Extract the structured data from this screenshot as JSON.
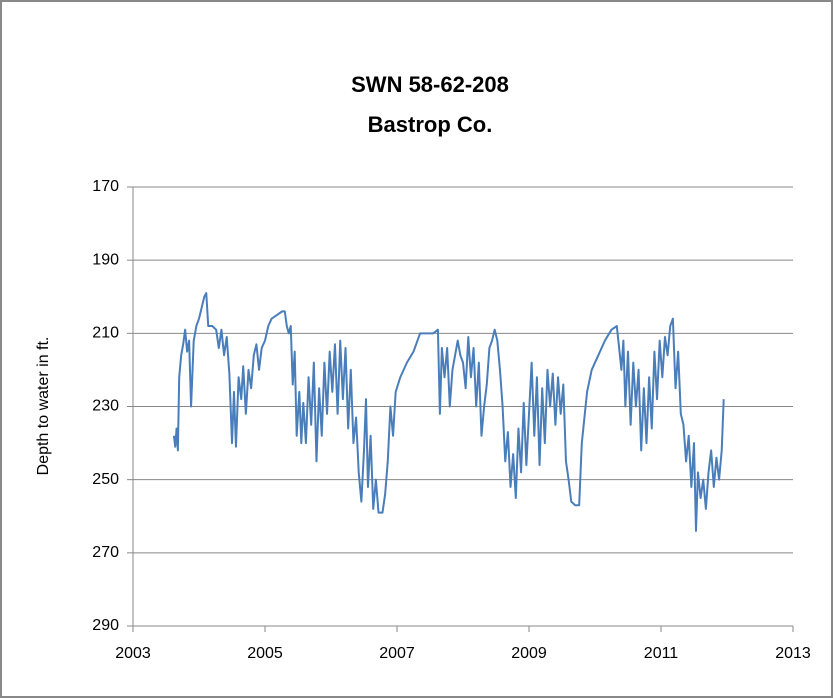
{
  "chart_data": {
    "type": "line",
    "title": "SWN 58-62-208",
    "subtitle": "Bastrop Co.",
    "y_label": "Depth to water in ft.",
    "ylim": [
      170,
      290
    ],
    "y_inverted": true,
    "yticks": [
      170,
      190,
      210,
      230,
      250,
      270,
      290
    ],
    "xlim": [
      2003,
      2013
    ],
    "xticks": [
      2003,
      2005,
      2007,
      2009,
      2011,
      2013
    ],
    "grid": true,
    "x": [
      2003.62,
      2003.64,
      2003.66,
      2003.68,
      2003.7,
      2003.73,
      2003.76,
      2003.79,
      2003.82,
      2003.85,
      2003.88,
      2003.92,
      2003.96,
      2004.0,
      2004.04,
      2004.08,
      2004.11,
      2004.14,
      2004.2,
      2004.26,
      2004.3,
      2004.34,
      2004.38,
      2004.42,
      2004.46,
      2004.5,
      2004.53,
      2004.56,
      2004.6,
      2004.64,
      2004.67,
      2004.71,
      2004.75,
      2004.79,
      2004.83,
      2004.87,
      2004.91,
      2004.95,
      2005.0,
      2005.05,
      2005.1,
      2005.18,
      2005.26,
      2005.3,
      2005.33,
      2005.36,
      2005.39,
      2005.42,
      2005.45,
      2005.48,
      2005.52,
      2005.55,
      2005.58,
      2005.62,
      2005.66,
      2005.7,
      2005.74,
      2005.78,
      2005.82,
      2005.86,
      2005.9,
      2005.94,
      2005.98,
      2006.02,
      2006.06,
      2006.1,
      2006.14,
      2006.18,
      2006.22,
      2006.26,
      2006.3,
      2006.34,
      2006.38,
      2006.42,
      2006.46,
      2006.5,
      2006.53,
      2006.56,
      2006.6,
      2006.64,
      2006.68,
      2006.72,
      2006.78,
      2006.82,
      2006.86,
      2006.9,
      2006.94,
      2006.98,
      2007.05,
      2007.15,
      2007.25,
      2007.35,
      2007.45,
      2007.55,
      2007.62,
      2007.65,
      2007.68,
      2007.72,
      2007.76,
      2007.8,
      2007.84,
      2007.88,
      2007.92,
      2007.96,
      2008.0,
      2008.04,
      2008.08,
      2008.12,
      2008.16,
      2008.2,
      2008.24,
      2008.28,
      2008.32,
      2008.36,
      2008.4,
      2008.44,
      2008.48,
      2008.52,
      2008.56,
      2008.6,
      2008.64,
      2008.68,
      2008.72,
      2008.76,
      2008.8,
      2008.84,
      2008.88,
      2008.92,
      2008.96,
      2009.0,
      2009.04,
      2009.08,
      2009.12,
      2009.16,
      2009.2,
      2009.24,
      2009.28,
      2009.32,
      2009.36,
      2009.4,
      2009.44,
      2009.48,
      2009.52,
      2009.56,
      2009.6,
      2009.64,
      2009.7,
      2009.76,
      2009.8,
      2009.84,
      2009.88,
      2009.95,
      2010.05,
      2010.15,
      2010.25,
      2010.33,
      2010.36,
      2010.4,
      2010.43,
      2010.46,
      2010.5,
      2010.54,
      2010.58,
      2010.62,
      2010.66,
      2010.7,
      2010.74,
      2010.78,
      2010.82,
      2010.86,
      2010.9,
      2010.94,
      2010.98,
      2011.02,
      2011.06,
      2011.1,
      2011.14,
      2011.18,
      2011.22,
      2011.26,
      2011.3,
      2011.34,
      2011.38,
      2011.42,
      2011.46,
      2011.5,
      2011.53,
      2011.56,
      2011.6,
      2011.64,
      2011.68,
      2011.72,
      2011.76,
      2011.8,
      2011.84,
      2011.88,
      2011.92,
      2011.95
    ],
    "series": [
      {
        "color": "#4a7ebb",
        "values": [
          238,
          241,
          236,
          242,
          222,
          216,
          213,
          209,
          215,
          212,
          230,
          212,
          208,
          206,
          203,
          200,
          199,
          208,
          208,
          209,
          214,
          209,
          216,
          211,
          221,
          240,
          226,
          241,
          222,
          228,
          219,
          232,
          220,
          225,
          216,
          213,
          220,
          214,
          212,
          208,
          206,
          205,
          204,
          204,
          208,
          210,
          208,
          224,
          215,
          238,
          226,
          240,
          229,
          240,
          222,
          235,
          218,
          245,
          225,
          238,
          218,
          232,
          215,
          226,
          213,
          232,
          212,
          228,
          214,
          236,
          220,
          240,
          233,
          248,
          256,
          242,
          228,
          252,
          238,
          258,
          250,
          259,
          259,
          254,
          245,
          230,
          238,
          226,
          222,
          218,
          215,
          210,
          210,
          210,
          209,
          232,
          214,
          222,
          214,
          230,
          220,
          216,
          212,
          216,
          218,
          225,
          211,
          222,
          214,
          230,
          218,
          238,
          230,
          224,
          214,
          212,
          209,
          212,
          220,
          230,
          245,
          237,
          252,
          243,
          255,
          236,
          248,
          229,
          246,
          232,
          218,
          238,
          222,
          246,
          225,
          240,
          220,
          230,
          221,
          235,
          222,
          232,
          224,
          245,
          250,
          256,
          257,
          257,
          240,
          233,
          226,
          220,
          216,
          212,
          209,
          208,
          213,
          220,
          212,
          230,
          215,
          235,
          218,
          230,
          220,
          242,
          225,
          240,
          222,
          236,
          215,
          228,
          212,
          222,
          211,
          216,
          208,
          206,
          225,
          215,
          232,
          235,
          245,
          238,
          252,
          240,
          264,
          248,
          255,
          250,
          258,
          248,
          242,
          252,
          244,
          250,
          242,
          228
        ]
      }
    ]
  }
}
